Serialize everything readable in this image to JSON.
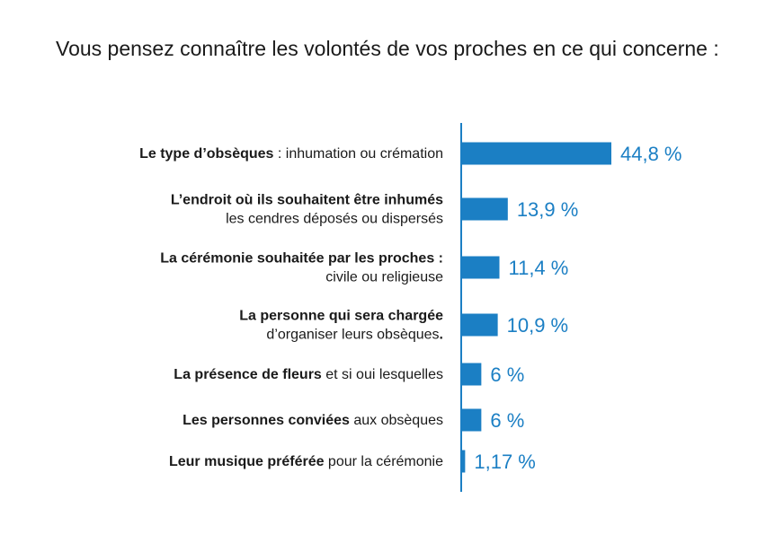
{
  "title": "Vous pensez connaître les volontés de vos proches en ce qui concerne :",
  "colors": {
    "bar": "#1b7fc4",
    "axis": "#1b7fc4",
    "text": "#1a1a1a"
  },
  "chart_data": {
    "type": "bar",
    "orientation": "horizontal",
    "title": "Vous pensez connaître les volontés de vos proches en ce qui concerne :",
    "xlim": [
      0,
      45
    ],
    "grid": false,
    "categories": [
      {
        "lines": [
          [
            {
              "text": "Le type d’obsèques",
              "bold": true
            },
            {
              "text": " : inhumation ou crémation",
              "bold": false
            }
          ]
        ]
      },
      {
        "lines": [
          [
            {
              "text": "L’endroit où ils souhaitent être inhumés",
              "bold": true
            }
          ],
          [
            {
              "text": "les cendres déposés ou dispersés",
              "bold": false
            }
          ]
        ]
      },
      {
        "lines": [
          [
            {
              "text": "La cérémonie souhaitée par les proches :",
              "bold": true
            }
          ],
          [
            {
              "text": "civile ou religieuse",
              "bold": false
            }
          ]
        ]
      },
      {
        "lines": [
          [
            {
              "text": "La personne qui sera chargée",
              "bold": true
            }
          ],
          [
            {
              "text": "d’organiser leurs obsèques",
              "bold": false
            },
            {
              "text": ".",
              "bold": true
            }
          ]
        ]
      },
      {
        "lines": [
          [
            {
              "text": "La présence de fleurs",
              "bold": true
            },
            {
              "text": " et si oui lesquelles",
              "bold": false
            }
          ]
        ]
      },
      {
        "lines": [
          [
            {
              "text": "Les personnes conviées",
              "bold": true
            },
            {
              "text": " aux obsèques",
              "bold": false
            }
          ]
        ]
      },
      {
        "lines": [
          [
            {
              "text": "Leur musique préférée",
              "bold": true
            },
            {
              "text": " pour la cérémonie",
              "bold": false
            }
          ]
        ]
      }
    ],
    "values": [
      44.8,
      13.9,
      11.4,
      10.9,
      6,
      6,
      1.17
    ],
    "value_labels": [
      "44,8 %",
      "13,9 %",
      "11,4 %",
      "10,9 %",
      "6 %",
      "6 %",
      "1,17 %"
    ]
  }
}
